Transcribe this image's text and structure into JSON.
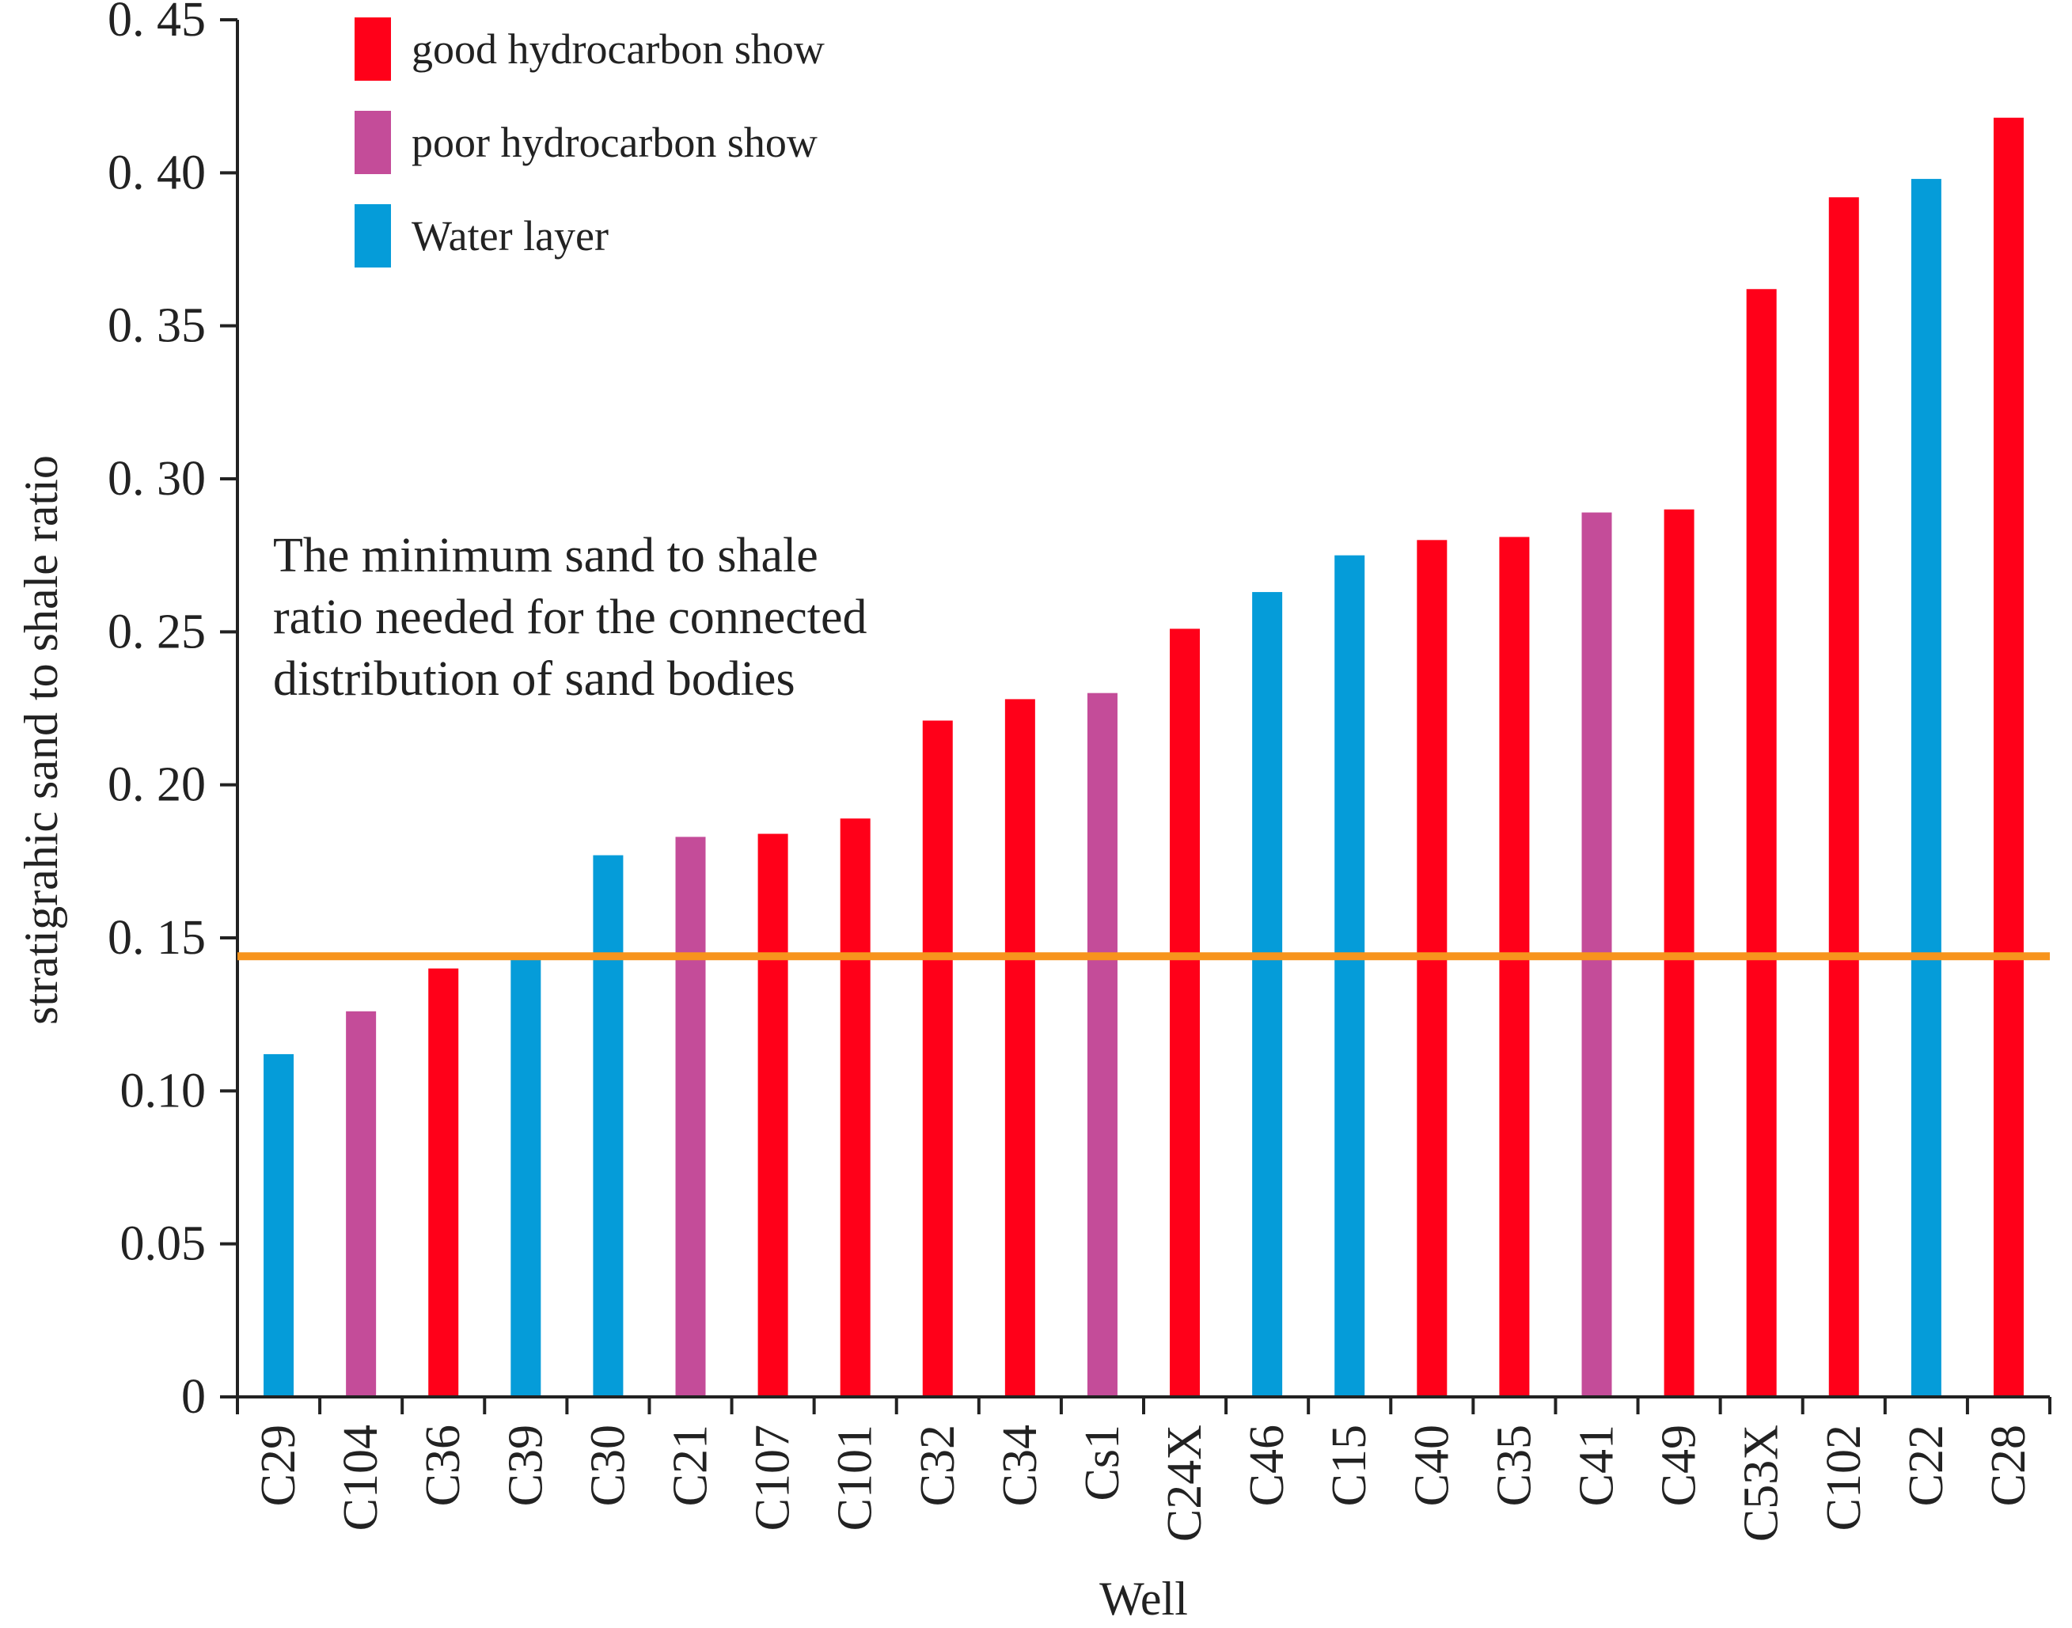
{
  "chart_data": {
    "type": "bar",
    "xlabel": "Well",
    "ylabel": "stratigrahic sand to shale ratio",
    "ylim": [
      0,
      0.45
    ],
    "yticks": [
      {
        "value": 0,
        "label": "0"
      },
      {
        "value": 0.05,
        "label": "0.05"
      },
      {
        "value": 0.1,
        "label": "0.10"
      },
      {
        "value": 0.15,
        "label": "0. 15"
      },
      {
        "value": 0.2,
        "label": "0. 20"
      },
      {
        "value": 0.25,
        "label": "0. 25"
      },
      {
        "value": 0.3,
        "label": "0. 30"
      },
      {
        "value": 0.35,
        "label": "0. 35"
      },
      {
        "value": 0.4,
        "label": "0. 40"
      },
      {
        "value": 0.45,
        "label": "0. 45"
      }
    ],
    "categories": [
      "C29",
      "C104",
      "C36",
      "C39",
      "C30",
      "C21",
      "C107",
      "C101",
      "C32",
      "C34",
      "Cs1",
      "C24X",
      "C46",
      "C15",
      "C40",
      "C35",
      "C41",
      "C49",
      "C53X",
      "C102",
      "C22",
      "C28"
    ],
    "values": [
      0.112,
      0.126,
      0.14,
      0.145,
      0.177,
      0.183,
      0.184,
      0.189,
      0.221,
      0.228,
      0.23,
      0.251,
      0.263,
      0.275,
      0.28,
      0.281,
      0.289,
      0.29,
      0.362,
      0.392,
      0.398,
      0.418
    ],
    "value_types": [
      "water",
      "poor",
      "good",
      "water",
      "water",
      "poor",
      "good",
      "good",
      "good",
      "good",
      "poor",
      "good",
      "water",
      "water",
      "good",
      "good",
      "poor",
      "good",
      "good",
      "good",
      "water",
      "good"
    ],
    "legend": [
      {
        "key": "good",
        "label": "good hydrocarbon show",
        "color": "#ff0019"
      },
      {
        "key": "poor",
        "label": "poor hydrocarbon show",
        "color": "#c44c99"
      },
      {
        "key": "water",
        "label": "Water layer",
        "color": "#059cd9"
      }
    ],
    "legend_position": "top-left",
    "threshold": {
      "value": 0.144,
      "color": "#f7941d"
    },
    "annotation": [
      "The minimum sand to shale",
      "ratio needed for the connected",
      "distribution of sand bodies"
    ],
    "grid": false
  }
}
